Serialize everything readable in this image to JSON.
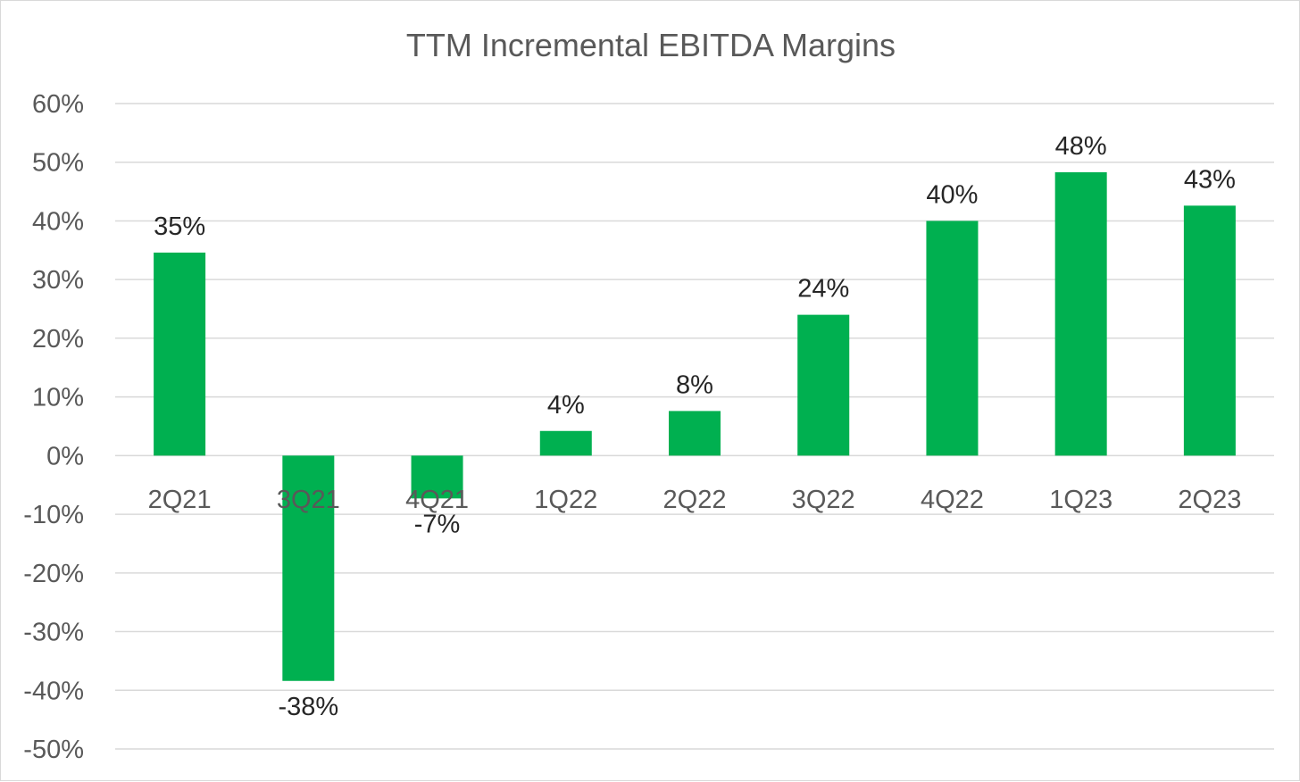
{
  "chart_data": {
    "type": "bar",
    "title": "TTM Incremental EBITDA Margins",
    "categories": [
      "2Q21",
      "3Q21",
      "4Q21",
      "1Q22",
      "2Q22",
      "3Q22",
      "4Q22",
      "1Q23",
      "2Q23"
    ],
    "values": [
      34.6,
      -38.4,
      -7.3,
      4.2,
      7.6,
      24.0,
      40.0,
      48.3,
      42.6
    ],
    "data_labels": [
      "35%",
      "-38%",
      "-7%",
      "4%",
      "8%",
      "24%",
      "40%",
      "48%",
      "43%"
    ],
    "ylim": [
      -50,
      60
    ],
    "yticks": [
      60,
      50,
      40,
      30,
      20,
      10,
      0,
      -10,
      -20,
      -30,
      -40,
      -50
    ],
    "ytick_labels": [
      "60%",
      "50%",
      "40%",
      "30%",
      "20%",
      "10%",
      "0%",
      "-10%",
      "-20%",
      "-30%",
      "-40%",
      "-50%"
    ],
    "xlabel": "",
    "ylabel": "",
    "grid": true,
    "legend": false,
    "colors": {
      "bar": "#00b050",
      "grid": "#d9d9d9",
      "axis_text": "#595959",
      "label_text": "#262626"
    }
  }
}
